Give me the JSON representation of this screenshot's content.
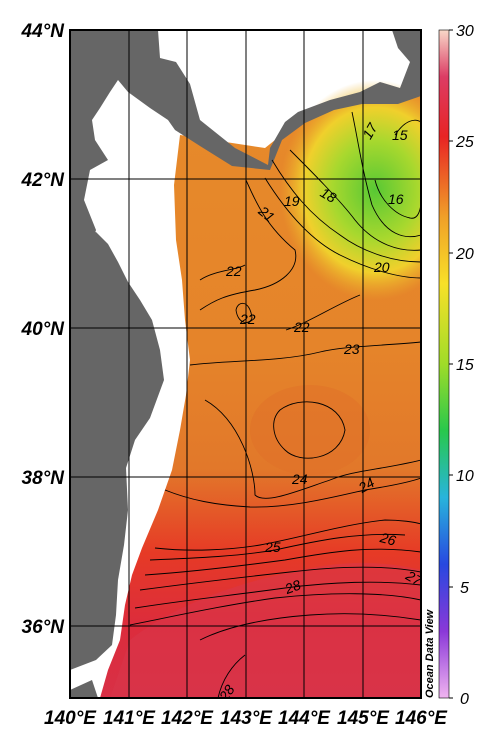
{
  "map": {
    "credit": "Ocean Data View",
    "latitude_labels": [
      "44°N",
      "42°N",
      "40°N",
      "38°N",
      "36°N"
    ],
    "longitude_labels": [
      "140°E",
      "141°E",
      "142°E",
      "143°E",
      "144°E",
      "145°E",
      "146°E"
    ],
    "land_color": "#666666",
    "contour_labels": [
      {
        "text": "15"
      },
      {
        "text": "16"
      },
      {
        "text": "17"
      },
      {
        "text": "18"
      },
      {
        "text": "19"
      },
      {
        "text": "20"
      },
      {
        "text": "21"
      },
      {
        "text": "22"
      },
      {
        "text": "22"
      },
      {
        "text": "22"
      },
      {
        "text": "23"
      },
      {
        "text": "24"
      },
      {
        "text": "24"
      },
      {
        "text": "25"
      },
      {
        "text": "26"
      },
      {
        "text": "27"
      },
      {
        "text": "28"
      },
      {
        "text": "28"
      }
    ]
  },
  "colorbar": {
    "min": 0,
    "max": 30,
    "tick_labels": [
      "30",
      "25",
      "20",
      "15",
      "10",
      "5",
      "0"
    ],
    "colors": [
      "#f0b4f0",
      "#8a38d8",
      "#2848e0",
      "#28b4dc",
      "#28c84c",
      "#a0dc28",
      "#f8e028",
      "#f0a028",
      "#e82424",
      "#dc3c64",
      "#f8d8c8"
    ]
  }
}
